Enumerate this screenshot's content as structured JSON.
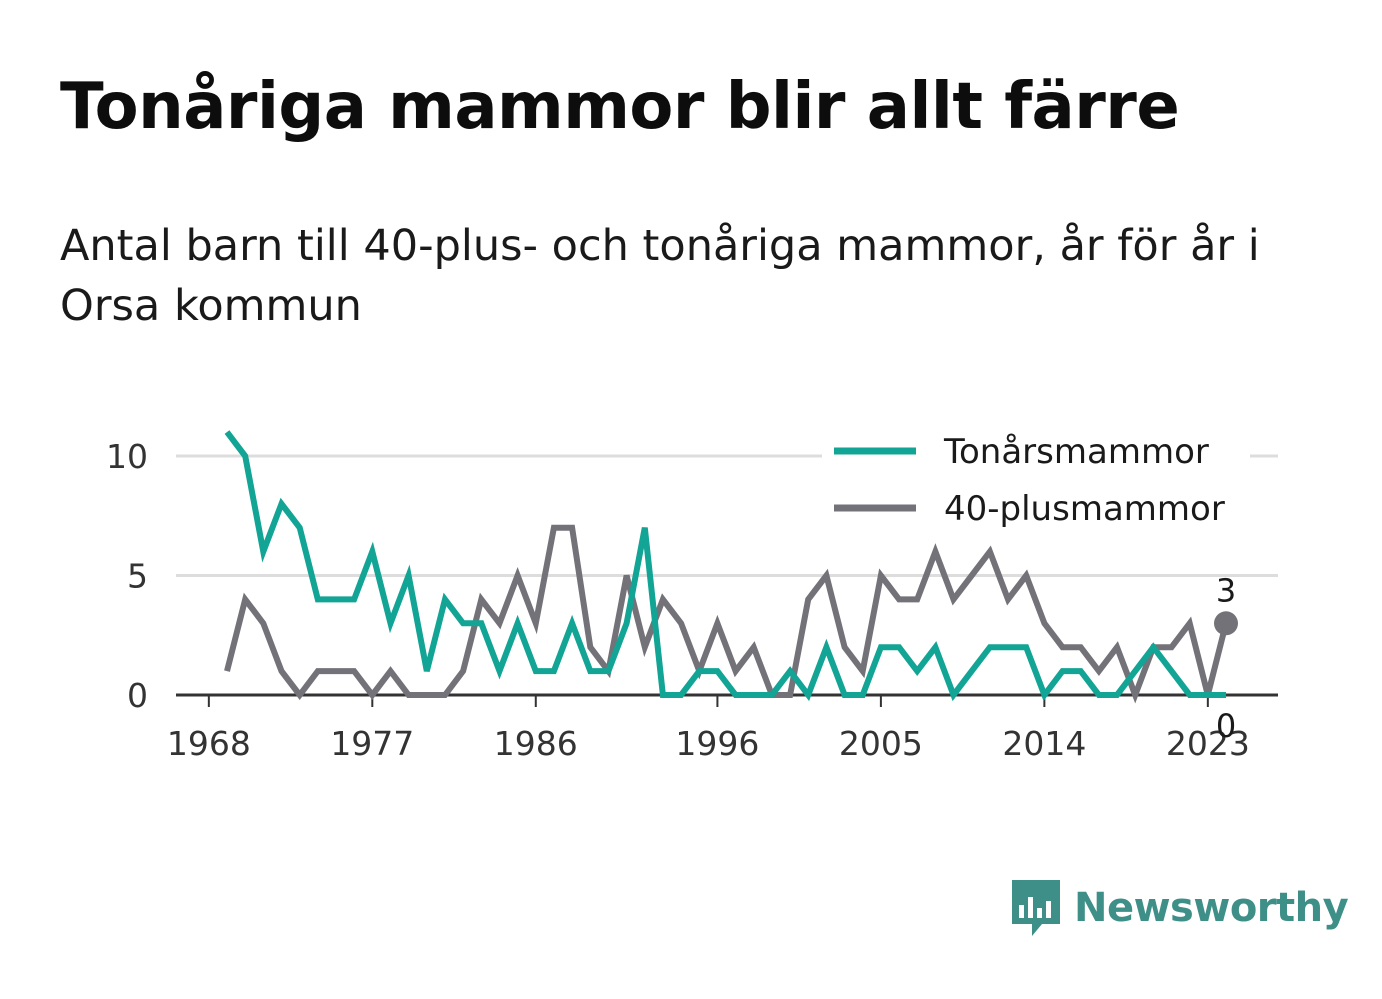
{
  "title": "Tonåriga mammor blir allt färre",
  "subtitle": "Antal barn till 40-plus- och tonåriga mammor, år för år i Orsa kommun",
  "brand": {
    "name": "Newsworthy",
    "icon": "newsworthy-logo-icon",
    "color": "#3f8f89"
  },
  "chart_data": {
    "type": "line",
    "x": [
      1969,
      1970,
      1971,
      1972,
      1973,
      1974,
      1975,
      1976,
      1977,
      1978,
      1979,
      1980,
      1981,
      1982,
      1983,
      1984,
      1985,
      1986,
      1987,
      1988,
      1989,
      1990,
      1991,
      1992,
      1993,
      1994,
      1995,
      1996,
      1997,
      1998,
      1999,
      2000,
      2001,
      2002,
      2003,
      2004,
      2005,
      2006,
      2007,
      2008,
      2009,
      2010,
      2011,
      2012,
      2013,
      2014,
      2015,
      2016,
      2017,
      2018,
      2019,
      2020,
      2021,
      2022,
      2023,
      2024
    ],
    "series": [
      {
        "name": "Tonårsmammor",
        "color": "#12a495",
        "values": [
          11,
          10,
          6,
          8,
          7,
          4,
          4,
          4,
          6,
          3,
          5,
          1,
          4,
          3,
          3,
          1,
          3,
          1,
          1,
          3,
          1,
          1,
          3,
          7,
          0,
          0,
          1,
          1,
          0,
          0,
          0,
          1,
          0,
          2,
          0,
          0,
          2,
          2,
          1,
          2,
          0,
          1,
          2,
          2,
          2,
          0,
          1,
          1,
          0,
          0,
          1,
          2,
          1,
          0,
          0,
          0
        ]
      },
      {
        "name": "40-plusmammor",
        "color": "#737278",
        "values": [
          1,
          4,
          3,
          1,
          0,
          1,
          1,
          1,
          0,
          1,
          0,
          0,
          0,
          1,
          4,
          3,
          5,
          3,
          7,
          7,
          2,
          1,
          5,
          2,
          4,
          3,
          1,
          3,
          1,
          2,
          0,
          0,
          4,
          5,
          2,
          1,
          5,
          4,
          4,
          6,
          4,
          5,
          6,
          4,
          5,
          3,
          2,
          2,
          1,
          2,
          0,
          2,
          2,
          3,
          0,
          3
        ]
      }
    ],
    "x_ticks": [
      "1968",
      "1977",
      "1986",
      "1996",
      "2005",
      "2014",
      "2023"
    ],
    "y_ticks": [
      "0",
      "5",
      "10"
    ],
    "ylim": [
      0,
      11
    ],
    "grid": true,
    "legend_position": "top-right",
    "end_labels": {
      "40-plusmammor": "3",
      "Tonårsmammor": "0"
    }
  }
}
